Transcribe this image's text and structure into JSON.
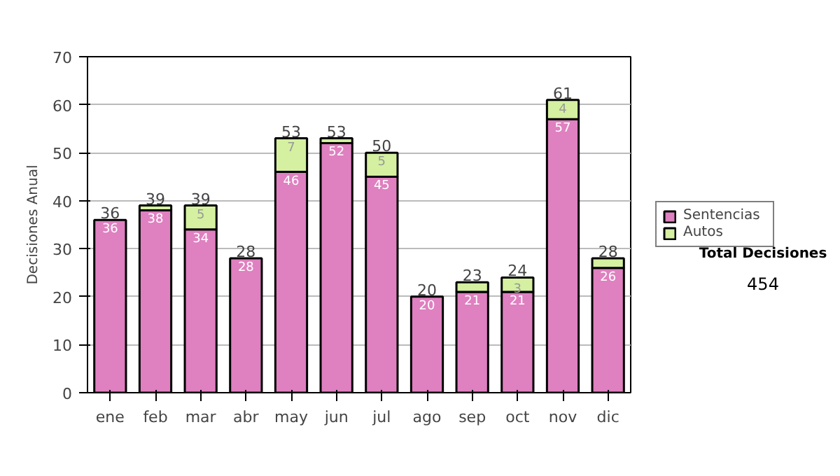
{
  "chart_data": {
    "type": "bar",
    "stacked": true,
    "ylabel": "Decisiones Anual",
    "categories": [
      "ene",
      "feb",
      "mar",
      "abr",
      "may",
      "jun",
      "jul",
      "ago",
      "sep",
      "oct",
      "nov",
      "dic"
    ],
    "series": [
      {
        "name": "Sentencias",
        "color": "#df80c0",
        "values": [
          36,
          38,
          34,
          28,
          46,
          52,
          45,
          20,
          21,
          21,
          57,
          26
        ],
        "value_labels": [
          "36",
          "38",
          "34",
          "28",
          "46",
          "52",
          "45",
          "20",
          "21",
          "21",
          "57",
          "26"
        ]
      },
      {
        "name": "Autos",
        "color": "#d4f0a0",
        "values": [
          0,
          1,
          5,
          0,
          7,
          1,
          5,
          0,
          2,
          3,
          4,
          2
        ],
        "value_labels": [
          null,
          null,
          "5",
          null,
          "7",
          null,
          "5",
          null,
          null,
          "3",
          "4",
          null
        ]
      }
    ],
    "totals": [
      "36",
      "39",
      "39",
      "28",
      "53",
      "53",
      "50",
      "20",
      "23",
      "24",
      "61",
      "28"
    ],
    "ylim": [
      0,
      70
    ],
    "yticks": [
      0,
      10,
      20,
      30,
      40,
      50,
      60,
      70
    ],
    "grid": "y",
    "legend": "right",
    "annotations": [
      "Total Decisiones",
      "454"
    ]
  }
}
